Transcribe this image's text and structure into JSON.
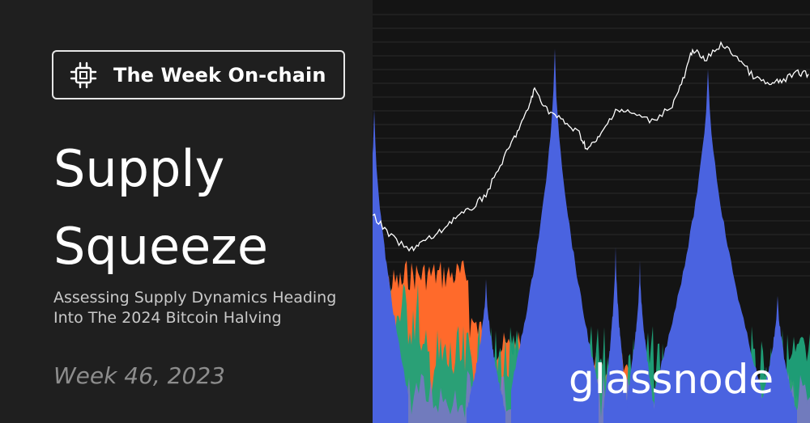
{
  "badge": {
    "label": "The Week On-chain",
    "icon": "chip-icon"
  },
  "title": {
    "line1": "Supply",
    "line2": "Squeeze"
  },
  "subtitle": {
    "line1": "Assessing Supply Dynamics Heading",
    "line2": "Into The 2024 Bitcoin Halving"
  },
  "week_label": "Week 46, 2023",
  "brand": "glassnode",
  "colors": {
    "background": "#1f1f1f",
    "chart_background": "#141414",
    "price_line": "#ffffff",
    "blue": "#4a63e0",
    "orange": "#ff6a2b",
    "green": "#1fa37a",
    "purple": "#8a6fd6"
  }
}
